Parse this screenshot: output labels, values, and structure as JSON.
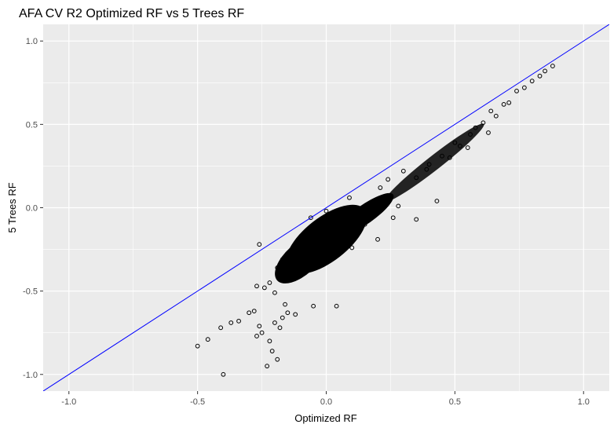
{
  "chart_data": {
    "type": "scatter",
    "title": "AFA CV R2 Optimized RF vs 5 Trees RF",
    "xlabel": "Optimized RF",
    "ylabel": "5 Trees RF",
    "xlim": [
      -1.1,
      1.1
    ],
    "ylim": [
      -1.1,
      1.1
    ],
    "x_ticks": [
      -1.0,
      -0.5,
      0.0,
      0.5,
      1.0
    ],
    "y_ticks": [
      -1.0,
      -0.5,
      0.0,
      0.5,
      1.0
    ],
    "x_tick_labels": [
      "-1.0",
      "-0.5",
      "0.0",
      "0.5",
      "1.0"
    ],
    "y_tick_labels": [
      "-1.0",
      "-0.5",
      "0.0",
      "0.5",
      "1.0"
    ],
    "grid": true,
    "legend": "none",
    "reference_line": {
      "slope": 1,
      "intercept": 0,
      "color": "#0000ff"
    },
    "colors": {
      "panel": "#ebebeb",
      "grid_major": "#ffffff",
      "points": "#000000",
      "line": "#0000ff"
    },
    "series": [
      {
        "points": [
          [
            -0.5,
            -0.83
          ],
          [
            -0.46,
            -0.79
          ],
          [
            -0.4,
            -1.0
          ],
          [
            -0.41,
            -0.72
          ],
          [
            -0.37,
            -0.69
          ],
          [
            -0.34,
            -0.68
          ],
          [
            -0.3,
            -0.63
          ],
          [
            -0.28,
            -0.62
          ],
          [
            -0.26,
            -0.71
          ],
          [
            -0.27,
            -0.77
          ],
          [
            -0.25,
            -0.75
          ],
          [
            -0.23,
            -0.95
          ],
          [
            -0.19,
            -0.91
          ],
          [
            -0.21,
            -0.86
          ],
          [
            -0.22,
            -0.8
          ],
          [
            -0.2,
            -0.69
          ],
          [
            -0.18,
            -0.72
          ],
          [
            -0.17,
            -0.66
          ],
          [
            -0.15,
            -0.63
          ],
          [
            -0.12,
            -0.64
          ],
          [
            -0.05,
            -0.59
          ],
          [
            0.04,
            -0.59
          ],
          [
            -0.26,
            -0.22
          ],
          [
            -0.19,
            -0.36
          ],
          [
            -0.17,
            -0.31
          ],
          [
            -0.27,
            -0.47
          ],
          [
            -0.24,
            -0.48
          ],
          [
            -0.22,
            -0.45
          ],
          [
            -0.2,
            -0.51
          ],
          [
            -0.16,
            -0.58
          ],
          [
            -0.06,
            -0.06
          ],
          [
            0.0,
            -0.02
          ],
          [
            0.09,
            0.06
          ],
          [
            0.21,
            0.12
          ],
          [
            0.24,
            0.17
          ],
          [
            0.3,
            0.22
          ],
          [
            0.35,
            0.18
          ],
          [
            0.39,
            0.23
          ],
          [
            0.4,
            0.26
          ],
          [
            0.45,
            0.31
          ],
          [
            0.5,
            0.39
          ],
          [
            0.52,
            0.37
          ],
          [
            0.56,
            0.44
          ],
          [
            0.58,
            0.48
          ],
          [
            0.61,
            0.51
          ],
          [
            0.64,
            0.58
          ],
          [
            0.66,
            0.55
          ],
          [
            0.69,
            0.62
          ],
          [
            0.71,
            0.63
          ],
          [
            0.74,
            0.7
          ],
          [
            0.77,
            0.72
          ],
          [
            0.8,
            0.76
          ],
          [
            0.83,
            0.79
          ],
          [
            0.85,
            0.82
          ],
          [
            0.88,
            0.85
          ],
          [
            0.63,
            0.45
          ],
          [
            0.43,
            0.04
          ],
          [
            0.35,
            -0.07
          ],
          [
            0.2,
            -0.19
          ],
          [
            0.1,
            -0.24
          ],
          [
            0.28,
            0.01
          ],
          [
            0.15,
            -0.1
          ],
          [
            0.48,
            0.3
          ],
          [
            0.55,
            0.36
          ],
          [
            0.26,
            -0.06
          ]
        ]
      }
    ]
  }
}
